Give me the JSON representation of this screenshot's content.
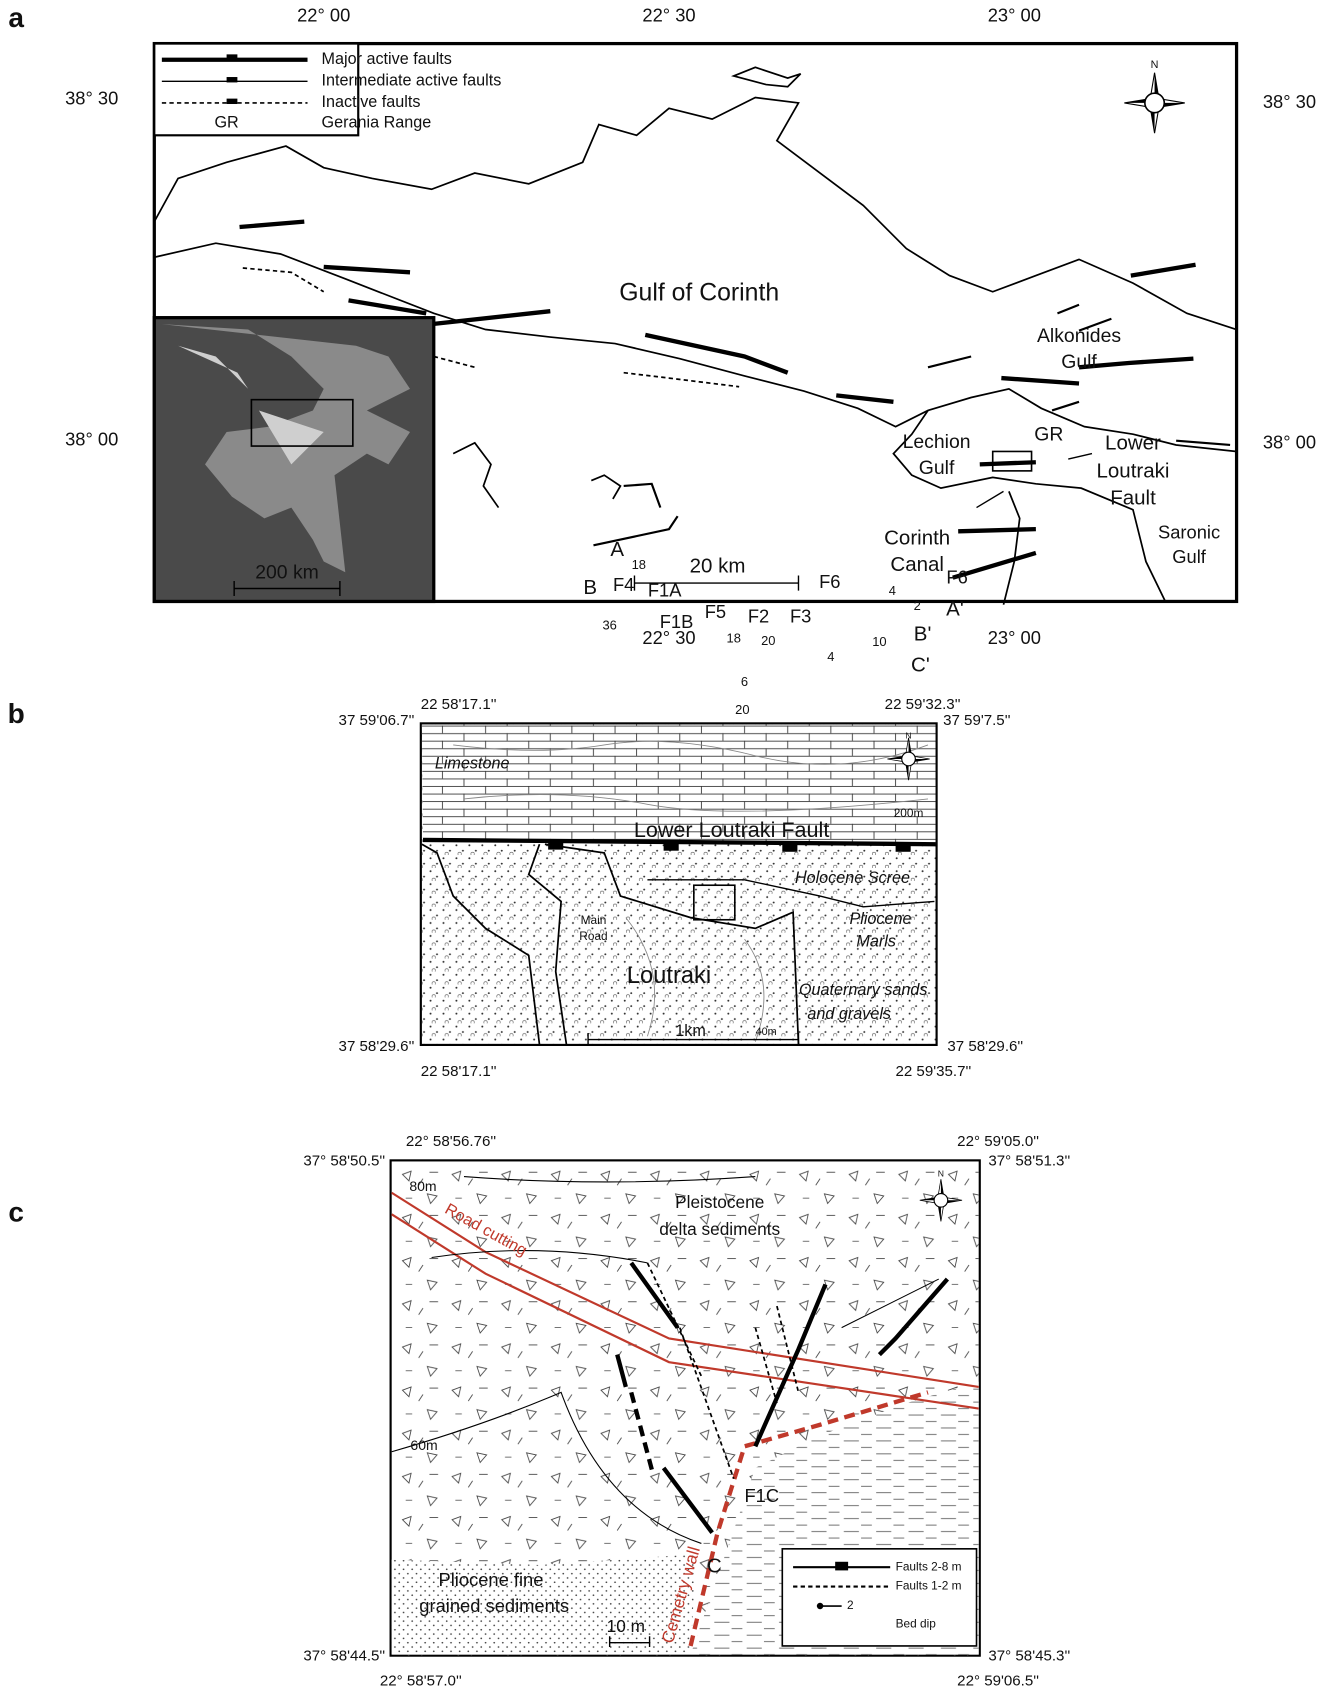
{
  "panel_a": {
    "letter": "a",
    "lon_top": [
      "22° 00",
      "22° 30",
      "23° 00"
    ],
    "lon_bottom": [
      "22° 30",
      "23° 00"
    ],
    "lat_left": [
      "38° 30",
      "38° 00"
    ],
    "lat_right": [
      "38° 30",
      "38° 00"
    ],
    "legend": [
      "Major active faults",
      "Intermediate active faults",
      "Inactive faults"
    ],
    "legend_gr": [
      "GR",
      "Gerania Range"
    ],
    "north": "N",
    "labels": {
      "gulf_corinth": "Gulf of Corinth",
      "alkonides": [
        "Alkonides",
        "Gulf"
      ],
      "lechion": [
        "Lechion",
        "Gulf"
      ],
      "gr": "GR",
      "llf": [
        "Lower",
        "Loutraki",
        "Fault"
      ],
      "canal": [
        "Corinth",
        "Canal"
      ],
      "saronic": [
        "Saronic",
        "Gulf"
      ]
    },
    "scale_inset": "200 km",
    "scale_main": "20 km"
  },
  "panel_b": {
    "letter": "b",
    "coords": {
      "top_left": "22 58'17.1''",
      "top_right": "22 59'32.3''",
      "left_top": "37 59'06.7''",
      "right_top": "37 59'7.5''",
      "left_bottom": "37 58'29.6''",
      "right_bottom": "37 58'29.6''",
      "bottom_left": "22 58'17.1''",
      "bottom_right": "22 59'35.7''"
    },
    "north": "N",
    "labels": {
      "limestone": "Limestone",
      "contour_top": "200m",
      "fault": "Lower Loutraki Fault",
      "scree": "Holocene Scree",
      "marls": [
        "Pliocene",
        "Marls"
      ],
      "road": [
        "Main",
        "Road"
      ],
      "town": "Loutraki",
      "sands": [
        "Quaternary sands",
        "and gravels"
      ],
      "contour_bottom": "40m"
    },
    "scale": "1km"
  },
  "panel_c": {
    "letter": "c",
    "coords": {
      "top_left": "22° 58'56.76''",
      "top_right": "22° 59'05.0''",
      "left_top": "37° 58'50.5''",
      "right_top": "37° 58'51.3''",
      "left_bottom": "37° 58'44.5''",
      "right_bottom": "37° 58'45.3''",
      "bottom_left": "22° 58'57.0''",
      "bottom_right": "22° 59'06.5''"
    },
    "north": "N",
    "contours": [
      "80m",
      "60m"
    ],
    "units": {
      "pleistocene": [
        "Pleistocene",
        "delta sediments"
      ],
      "pliocene": [
        "Pliocene fine",
        "grained sediments"
      ]
    },
    "road": "Road cutting",
    "wall": "Cemetry wall",
    "profiles": [
      "A",
      "A'",
      "B",
      "B'",
      "C",
      "C'"
    ],
    "faults": [
      "F1A",
      "F1B",
      "F1C",
      "F2",
      "F3",
      "F4",
      "F5",
      "F6",
      "F6"
    ],
    "dips": [
      "18",
      "36",
      "18",
      "20",
      "6",
      "20",
      "4",
      "2",
      "10",
      "4"
    ],
    "scale": "10 m",
    "legend": [
      "Faults 2-8 m",
      "Faults 1-2 m",
      "2",
      "Bed dip"
    ]
  }
}
